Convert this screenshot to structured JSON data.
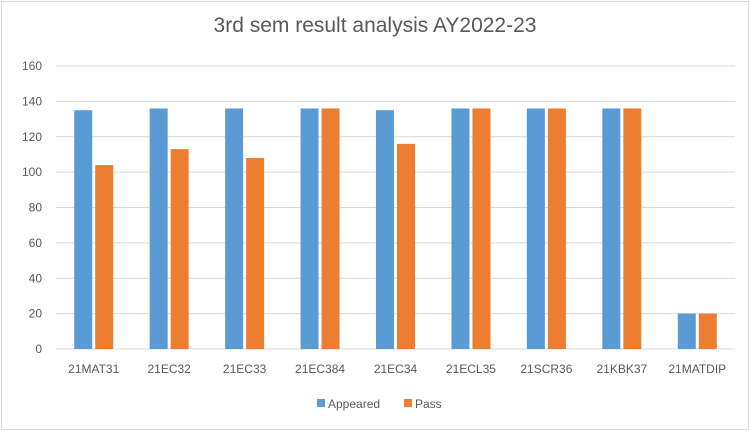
{
  "chart_data": {
    "type": "bar",
    "title": "3rd sem result analysis AY2022-23",
    "xlabel": "",
    "ylabel": "",
    "ylim": [
      0,
      160
    ],
    "yticks": [
      0,
      20,
      40,
      60,
      80,
      100,
      120,
      140,
      160
    ],
    "grid": true,
    "legend_position": "bottom",
    "categories": [
      "21MAT31",
      "21EC32",
      "21EC33",
      "21EC384",
      "21EC34",
      "21ECL35",
      "21SCR36",
      "21KBK37",
      "21MATDIP"
    ],
    "series": [
      {
        "name": "Appeared",
        "color": "#5b9bd5",
        "values": [
          135,
          136,
          136,
          136,
          135,
          136,
          136,
          136,
          20
        ]
      },
      {
        "name": "Pass",
        "color": "#ed7d31",
        "values": [
          104,
          113,
          108,
          136,
          116,
          136,
          136,
          136,
          20
        ]
      }
    ]
  }
}
